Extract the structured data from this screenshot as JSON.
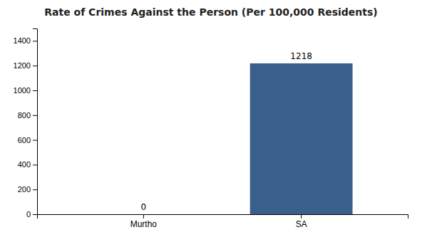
{
  "chart_data": {
    "type": "bar",
    "title": "Rate of Crimes Against the Person (Per 100,000 Residents)",
    "categories": [
      "Murtho",
      "SA"
    ],
    "values": [
      0,
      1218
    ],
    "color": "#3a5f8a",
    "ylim": [
      0,
      1500
    ],
    "yticks": [
      0,
      200,
      400,
      600,
      800,
      1000,
      1200,
      1400
    ],
    "grid": false,
    "data_labels": true
  }
}
